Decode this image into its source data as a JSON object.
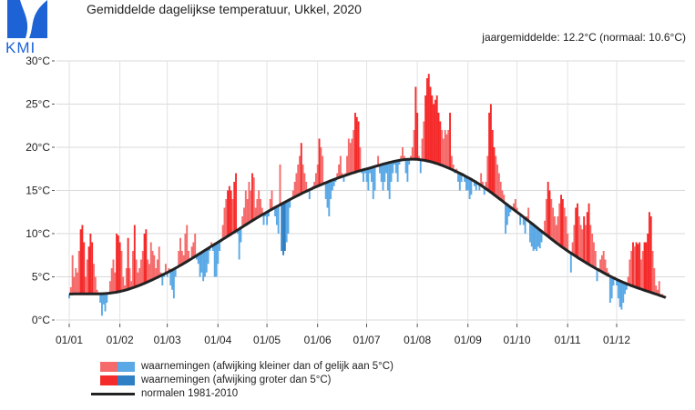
{
  "title": "Gemiddelde dagelijkse temperatuur, Ukkel, 2020",
  "subtitle": "jaargemiddelde: 12.2°C (normaal: 10.6°C)",
  "logo_text": "KMI",
  "colors": {
    "above_small": "#f56b6b",
    "above_large": "#f52a2a",
    "below_small": "#5aa9e6",
    "below_large": "#2f7fc4",
    "normal_line": "#222222",
    "logo_blue": "#1d63d6"
  },
  "legend": [
    {
      "label": "waarnemingen (afwijking kleiner dan of gelijk aan 5°C)"
    },
    {
      "label": "waarnemingen (afwijking groter dan 5°C)"
    },
    {
      "label": "normalen 1981-2010"
    }
  ],
  "chart_data": {
    "type": "bar",
    "title": "Gemiddelde dagelijkse temperatuur, Ukkel, 2020",
    "year": 2020,
    "ylim": [
      0,
      30
    ],
    "y_ticks": [
      "0°C",
      "5°C",
      "10°C",
      "15°C",
      "20°C",
      "25°C",
      "30°C"
    ],
    "y_tick_values": [
      0,
      5,
      10,
      15,
      20,
      25,
      30
    ],
    "x_ticks": [
      "01/01",
      "01/02",
      "01/03",
      "01/04",
      "01/05",
      "01/06",
      "01/07",
      "01/08",
      "01/09",
      "01/10",
      "01/11",
      "01/12"
    ],
    "grid": true,
    "legend_position": "bottom-left",
    "deviation_threshold": 5,
    "normal_series": {
      "name": "normalen 1981-2010",
      "dates": [
        "01/01",
        "01/02",
        "01/03",
        "01/04",
        "01/05",
        "01/06",
        "01/07",
        "01/08",
        "01/09",
        "01/10",
        "01/11",
        "01/12",
        "31/12"
      ],
      "values": [
        3.0,
        3.3,
        5.5,
        9.0,
        12.5,
        15.5,
        17.5,
        18.6,
        16.5,
        12.5,
        8.0,
        4.7,
        2.6
      ]
    },
    "observations": {
      "name": "waarnemingen",
      "months": [
        [
          2.5,
          3.8,
          7.5,
          5,
          6,
          5.5,
          8,
          10.5,
          11,
          9,
          5,
          7,
          8.5,
          10,
          9,
          6.5,
          5,
          3.5,
          3.2,
          2,
          0.5,
          1.8,
          1,
          2,
          3,
          4.5,
          6,
          7,
          5.5,
          10,
          9.8
        ],
        [
          9,
          8,
          5,
          4,
          6,
          9.5,
          6,
          4.5,
          8,
          11,
          7,
          5.5,
          6,
          7,
          8,
          10,
          10.5,
          7,
          6.5,
          9,
          8,
          7.5,
          6,
          7,
          8.5,
          5.5,
          4,
          5,
          6.5
        ],
        [
          5,
          6,
          4,
          3.5,
          2.5,
          5,
          6,
          8,
          9.5,
          8,
          7.5,
          10,
          11,
          8,
          7,
          8.5,
          9,
          10,
          7,
          6.5,
          5,
          5.5,
          4.5,
          5,
          5.5,
          6.5,
          8,
          9,
          8,
          5,
          5
        ],
        [
          6.5,
          8,
          9,
          11,
          13,
          14,
          15,
          15.5,
          15,
          14,
          16,
          17,
          10,
          7,
          9,
          12,
          13,
          15,
          14,
          16,
          15,
          17,
          16.5,
          13,
          14,
          15,
          14,
          13,
          11,
          12
        ],
        [
          11,
          12,
          14,
          15,
          13,
          12,
          11,
          10,
          18,
          8,
          7.5,
          8,
          9,
          10,
          13,
          14,
          15,
          16,
          17,
          18,
          19,
          20.5,
          18,
          17,
          16,
          15,
          14,
          15,
          15.5,
          16,
          17
        ],
        [
          18,
          21,
          20,
          19,
          16,
          14,
          13,
          12,
          14,
          15,
          15.5,
          16,
          17,
          18,
          19,
          17,
          16,
          17,
          19,
          21,
          20.5,
          21,
          22,
          24,
          23.5,
          23,
          20,
          17,
          16,
          17
        ],
        [
          16,
          15,
          17,
          16,
          14,
          15,
          18,
          19,
          17,
          16,
          15,
          16,
          17,
          15,
          14,
          16,
          17,
          18,
          17,
          16,
          18,
          19,
          20,
          19,
          17,
          16,
          18,
          19,
          20,
          22,
          27
        ],
        [
          24,
          19,
          17,
          21,
          23,
          26,
          28,
          28.5,
          27,
          26,
          25,
          25.5,
          26,
          24,
          23,
          22,
          21,
          22,
          21.5,
          22,
          24,
          19,
          18,
          17,
          17.5,
          16,
          15,
          16,
          17,
          16,
          15
        ],
        [
          15,
          14,
          14.5,
          16,
          15.5,
          15,
          16,
          15,
          17,
          16,
          14.5,
          16,
          19,
          24,
          25,
          22,
          20,
          19,
          18,
          17,
          16,
          15,
          14.5,
          10,
          11,
          12,
          12.5,
          13,
          13.5,
          14
        ],
        [
          13,
          12.5,
          11,
          12,
          11,
          10,
          12,
          13,
          9,
          8.5,
          8,
          8.2,
          8,
          8.5,
          8.3,
          9,
          10,
          11.5,
          14,
          16,
          15,
          14,
          13,
          12,
          11,
          12,
          13.5,
          14.5,
          14,
          13,
          12
        ],
        [
          10,
          8,
          5.5,
          9,
          11,
          13,
          13.5,
          12,
          11,
          10.5,
          12,
          11,
          12.5,
          13.5,
          11,
          10,
          9,
          8,
          4.5,
          6,
          7,
          7.5,
          8,
          7,
          6,
          5.5,
          2,
          2.5,
          4,
          5
        ],
        [
          4,
          2.5,
          1.5,
          1.2,
          2,
          3,
          3.5,
          5,
          7,
          8,
          9,
          8.5,
          9,
          8.8,
          9,
          7,
          8,
          9,
          9,
          10,
          12.5,
          12,
          8,
          6,
          4,
          3.5,
          4.5,
          3,
          3,
          2.8,
          2.7
        ]
      ]
    }
  }
}
